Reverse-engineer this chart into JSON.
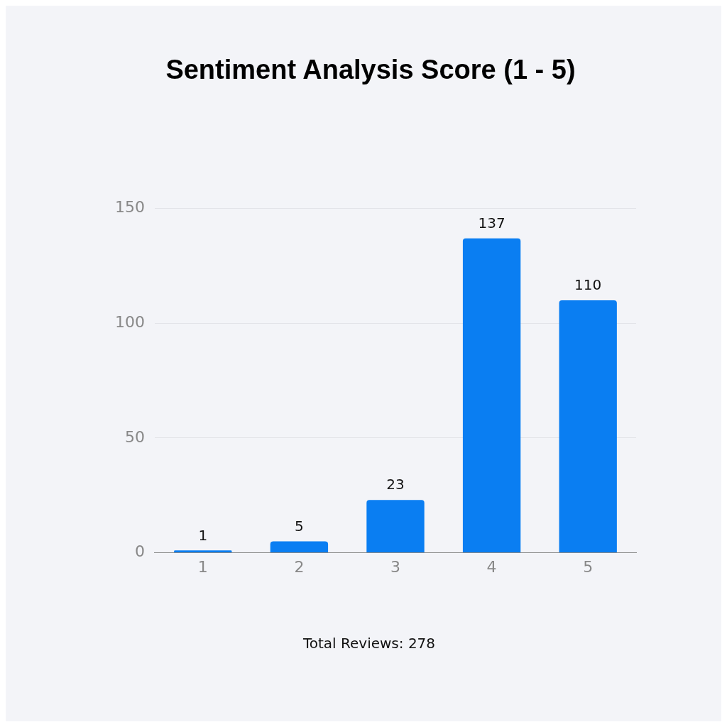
{
  "chart_data": {
    "type": "bar",
    "title": "Sentiment Analysis Score (1 - 5)",
    "categories": [
      "1",
      "2",
      "3",
      "4",
      "5"
    ],
    "values": [
      1,
      5,
      23,
      137,
      110
    ],
    "color": "#0a7ef2",
    "ylim": [
      0,
      150
    ],
    "yticks": [
      0,
      50,
      100,
      150
    ],
    "grid": "y",
    "legend": false,
    "data_labels": true,
    "annotations": [
      "Total Reviews: 278"
    ]
  }
}
